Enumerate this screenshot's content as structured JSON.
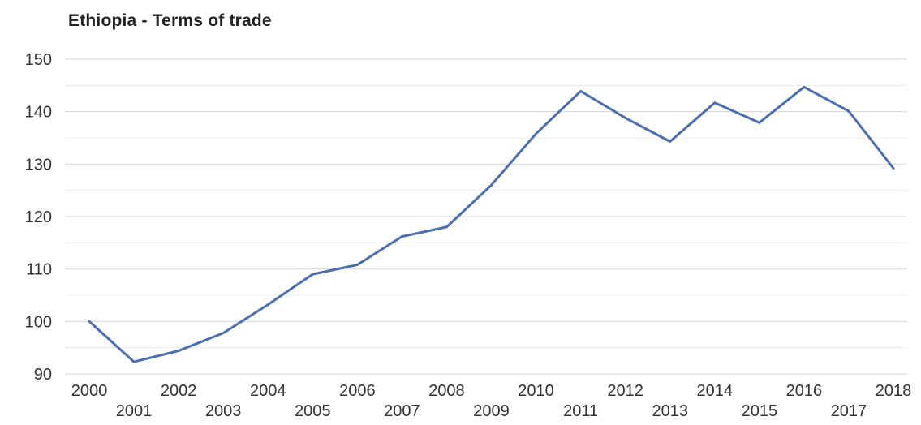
{
  "chart_data": {
    "type": "line",
    "title": "Ethiopia - Terms of trade",
    "xlabel": "",
    "ylabel": "",
    "categories": [
      "2000",
      "2001",
      "2002",
      "2003",
      "2004",
      "2005",
      "2006",
      "2007",
      "2008",
      "2009",
      "2010",
      "2011",
      "2012",
      "2013",
      "2014",
      "2015",
      "2016",
      "2017",
      "2018"
    ],
    "series": [
      {
        "values": [
          100,
          92.3,
          94.4,
          97.8,
          103.2,
          109.0,
          110.8,
          116.2,
          118.0,
          126.0,
          135.8,
          143.9,
          138.8,
          134.3,
          141.7,
          137.9,
          144.7,
          140.1,
          129.2
        ]
      }
    ],
    "ylim": [
      90,
      150
    ],
    "yticks": [
      90,
      100,
      110,
      120,
      130,
      140,
      150
    ],
    "grid": true,
    "legend": "none",
    "line_color": "#4a6fb0",
    "grid_color": "#d6d6d6",
    "text_color": "#333333"
  }
}
